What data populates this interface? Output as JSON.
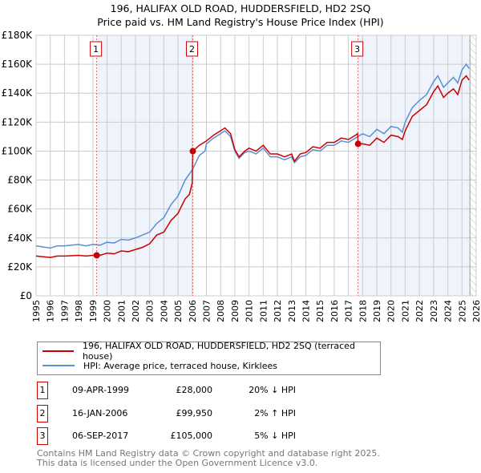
{
  "chart_data": {
    "type": "line",
    "title": "196, HALIFAX OLD ROAD, HUDDERSFIELD, HD2 2SQ",
    "subtitle": "Price paid vs. HM Land Registry's House Price Index (HPI)",
    "xlim": [
      1995,
      2026
    ],
    "ylim": [
      0,
      180000
    ],
    "x_ticks": [
      "1995",
      "1996",
      "1997",
      "1998",
      "1999",
      "2000",
      "2001",
      "2002",
      "2003",
      "2004",
      "2005",
      "2006",
      "2007",
      "2008",
      "2009",
      "2010",
      "2011",
      "2012",
      "2013",
      "2014",
      "2015",
      "2016",
      "2017",
      "2018",
      "2019",
      "2020",
      "2021",
      "2022",
      "2023",
      "2024",
      "2025",
      "2026"
    ],
    "y_ticks": [
      {
        "v": 0,
        "label": "£0"
      },
      {
        "v": 20000,
        "label": "£20K"
      },
      {
        "v": 40000,
        "label": "£40K"
      },
      {
        "v": 60000,
        "label": "£60K"
      },
      {
        "v": 80000,
        "label": "£80K"
      },
      {
        "v": 100000,
        "label": "£100K"
      },
      {
        "v": 120000,
        "label": "£120K"
      },
      {
        "v": 140000,
        "label": "£140K"
      },
      {
        "v": 160000,
        "label": "£160K"
      },
      {
        "v": 180000,
        "label": "£180K"
      }
    ],
    "grid": true,
    "shaded_ranges": [
      [
        1999.27,
        2006.04
      ],
      [
        2017.68,
        2025.5
      ]
    ],
    "hatched_from": 2025.5,
    "series": [
      {
        "name": "196, HALIFAX OLD ROAD, HUDDERSFIELD, HD2 2SQ (terraced house)",
        "color": "#cc0000",
        "x": [
          1995,
          1996,
          1996.5,
          1997,
          1998,
          1998.5,
          1999,
          1999.27,
          1999.5,
          2000,
          2000.5,
          2001,
          2001.5,
          2002,
          2002.5,
          2003,
          2003.5,
          2004,
          2004.5,
          2005,
          2005.5,
          2005.8,
          2006.0,
          2006.04,
          2006.5,
          2007,
          2007.5,
          2008,
          2008.3,
          2008.7,
          2009,
          2009.3,
          2009.7,
          2010,
          2010.5,
          2011,
          2011.5,
          2012,
          2012.5,
          2013,
          2013.2,
          2013.6,
          2014,
          2014.5,
          2015,
          2015.5,
          2016,
          2016.5,
          2017,
          2017.5,
          2017.65,
          2017.68,
          2018,
          2018.5,
          2019,
          2019.5,
          2020,
          2020.5,
          2020.8,
          2021,
          2021.5,
          2022,
          2022.5,
          2023,
          2023.3,
          2023.7,
          2024,
          2024.4,
          2024.7,
          2025,
          2025.3,
          2025.5
        ],
        "y": [
          27.5,
          26.5,
          27.5,
          27.5,
          28,
          27.5,
          28,
          28,
          28,
          29.5,
          29,
          31,
          30.5,
          32,
          33.5,
          36,
          42,
          44,
          52,
          57,
          67,
          70,
          78,
          99.95,
          104,
          107,
          111,
          114,
          116,
          112,
          101,
          96,
          100,
          102,
          100,
          104,
          98,
          98,
          96,
          98,
          93,
          98,
          99,
          103,
          102,
          106,
          106,
          109,
          108,
          111,
          112,
          105,
          105,
          104,
          109,
          106,
          111,
          110,
          108,
          114,
          124,
          128,
          132,
          141,
          145,
          137,
          140,
          143,
          139,
          149,
          152,
          149
        ]
      },
      {
        "name": "HPI: Average price, terraced house, Kirklees",
        "color": "#5b8fd4",
        "x": [
          1995,
          1996,
          1996.5,
          1997,
          1998,
          1998.5,
          1999,
          1999.5,
          2000,
          2000.5,
          2001,
          2001.5,
          2002,
          2002.5,
          2003,
          2003.5,
          2004,
          2004.5,
          2005,
          2005.5,
          2006,
          2006.5,
          2006.9,
          2007,
          2007.5,
          2008,
          2008.3,
          2008.7,
          2009,
          2009.3,
          2009.7,
          2010,
          2010.5,
          2011,
          2011.5,
          2012,
          2012.5,
          2013,
          2013.2,
          2013.6,
          2014,
          2014.5,
          2015,
          2015.5,
          2016,
          2016.5,
          2017,
          2017.5,
          2018,
          2018.5,
          2019,
          2019.5,
          2020,
          2020.5,
          2020.8,
          2021,
          2021.5,
          2022,
          2022.5,
          2023,
          2023.3,
          2023.7,
          2024,
          2024.4,
          2024.7,
          2025,
          2025.3,
          2025.5
        ],
        "y": [
          34.5,
          33,
          34.5,
          34.5,
          35.5,
          34.5,
          35.5,
          35,
          37,
          36.5,
          39,
          38.5,
          40,
          42,
          44,
          50,
          54,
          63,
          69,
          80,
          87,
          97,
          100,
          105,
          109,
          112,
          114,
          110,
          100,
          95,
          99,
          100,
          98,
          102,
          96,
          96,
          94,
          96,
          92,
          96,
          97,
          101,
          100,
          104,
          104,
          107,
          106,
          109,
          112,
          110,
          115,
          112,
          117,
          116,
          113,
          120,
          130,
          135,
          139,
          148,
          152,
          144,
          147,
          151,
          147,
          156,
          160,
          157
        ]
      }
    ],
    "y_unit": "thousands GBP",
    "annotations": [
      {
        "label": "1",
        "x": 1999.27,
        "y": 28
      },
      {
        "label": "2",
        "x": 2006.04,
        "y": 99.95
      },
      {
        "label": "3",
        "x": 2017.68,
        "y": 105
      }
    ]
  },
  "legend": {
    "red": "196, HALIFAX OLD ROAD, HUDDERSFIELD, HD2 2SQ (terraced house)",
    "blue": "HPI: Average price, terraced house, Kirklees"
  },
  "sales": [
    {
      "num": "1",
      "date": "09-APR-1999",
      "price": "£28,000",
      "hpi": "20% ↓ HPI"
    },
    {
      "num": "2",
      "date": "16-JAN-2006",
      "price": "£99,950",
      "hpi": "2% ↑ HPI"
    },
    {
      "num": "3",
      "date": "06-SEP-2017",
      "price": "£105,000",
      "hpi": "5% ↓ HPI"
    }
  ],
  "footer": {
    "line1": "Contains HM Land Registry data © Crown copyright and database right 2025.",
    "line2": "This data is licensed under the Open Government Licence v3.0."
  }
}
